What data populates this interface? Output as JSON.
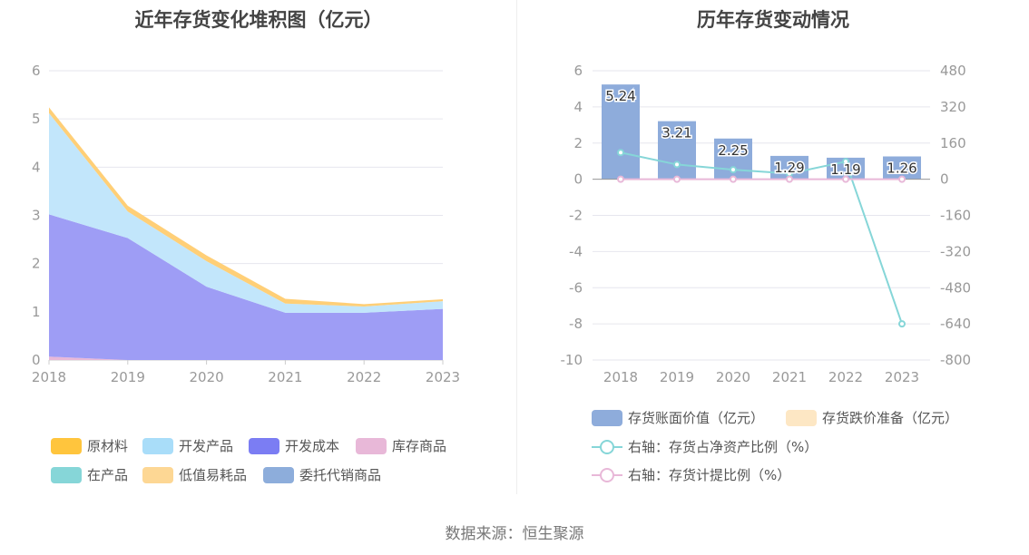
{
  "source": "数据来源：恒生聚源",
  "chart_data": [
    {
      "type": "area",
      "title": "近年存货变化堆积图（亿元）",
      "stacked": true,
      "x": [
        "2018",
        "2019",
        "2020",
        "2021",
        "2022",
        "2023"
      ],
      "ylim": [
        0,
        6
      ],
      "yticks": [
        "0",
        "1",
        "2",
        "3",
        "4",
        "5",
        "6"
      ],
      "grid": true,
      "legend_position": "bottom",
      "series": [
        {
          "name": "库存商品",
          "color": "#e8b8d8",
          "values": [
            0.07,
            0.0,
            0.0,
            0.0,
            0.0,
            0.0
          ]
        },
        {
          "name": "开发成本",
          "color": "#9e9df5",
          "values": [
            2.95,
            2.53,
            1.52,
            0.98,
            0.98,
            1.06
          ]
        },
        {
          "name": "开发产品",
          "color": "#c2e6fb",
          "values": [
            2.1,
            0.55,
            0.53,
            0.19,
            0.13,
            0.16
          ]
        },
        {
          "name": "原材料",
          "color": "#ffcf77",
          "values": [
            0.12,
            0.12,
            0.12,
            0.1,
            0.05,
            0.04
          ]
        },
        {
          "name": "在产品",
          "color": "#86d6d8",
          "values": [
            0,
            0,
            0,
            0,
            0,
            0
          ]
        },
        {
          "name": "低值易耗品",
          "color": "#fdd794",
          "values": [
            0,
            0,
            0,
            0,
            0,
            0
          ]
        },
        {
          "name": "委托代销商品",
          "color": "#8daddb",
          "values": [
            0,
            0,
            0,
            0,
            0,
            0
          ]
        }
      ],
      "legend": [
        {
          "name": "原材料",
          "color": "#ffc53d"
        },
        {
          "name": "开发产品",
          "color": "#a9ddf9"
        },
        {
          "name": "开发成本",
          "color": "#7b7df3"
        },
        {
          "name": "库存商品",
          "color": "#e8b8d8"
        },
        {
          "name": "在产品",
          "color": "#86d6d8"
        },
        {
          "name": "低值易耗品",
          "color": "#fdd794"
        },
        {
          "name": "委托代销商品",
          "color": "#8daddb"
        }
      ]
    },
    {
      "type": "bar",
      "title": "历年存货变动情况",
      "categories": [
        "2018",
        "2019",
        "2020",
        "2021",
        "2022",
        "2023"
      ],
      "ylim": [
        -10,
        6
      ],
      "yticks": [
        "-10",
        "-8",
        "-6",
        "-4",
        "-2",
        "0",
        "2",
        "4",
        "6"
      ],
      "y2lim": [
        -800,
        480
      ],
      "y2ticks": [
        "-800",
        "-640",
        "-480",
        "-320",
        "-160",
        "0",
        "160",
        "320",
        "480"
      ],
      "grid": true,
      "legend_position": "bottom",
      "series": [
        {
          "name": "存货账面价值（亿元）",
          "kind": "bar",
          "axis": "left",
          "color": "#8eacdb",
          "values": [
            5.24,
            3.21,
            2.25,
            1.29,
            1.19,
            1.26
          ],
          "labels": [
            "5.24",
            "3.21",
            "2.25",
            "1.29",
            "1.19",
            "1.26"
          ]
        },
        {
          "name": "存货跌价准备（亿元）",
          "kind": "bar",
          "axis": "left",
          "color": "#fde7c4",
          "values": [
            0,
            0,
            0,
            0,
            0,
            0
          ]
        },
        {
          "name": "右轴：存货占净资产比例（%）",
          "kind": "line",
          "axis": "right",
          "color": "#86d6d8",
          "values": [
            118,
            65,
            42,
            25,
            78,
            -640
          ]
        },
        {
          "name": "右轴：存货计提比例（%）",
          "kind": "line",
          "axis": "right",
          "color": "#e8b8d8",
          "values": [
            0,
            0,
            0,
            0,
            0,
            0
          ]
        }
      ]
    }
  ]
}
